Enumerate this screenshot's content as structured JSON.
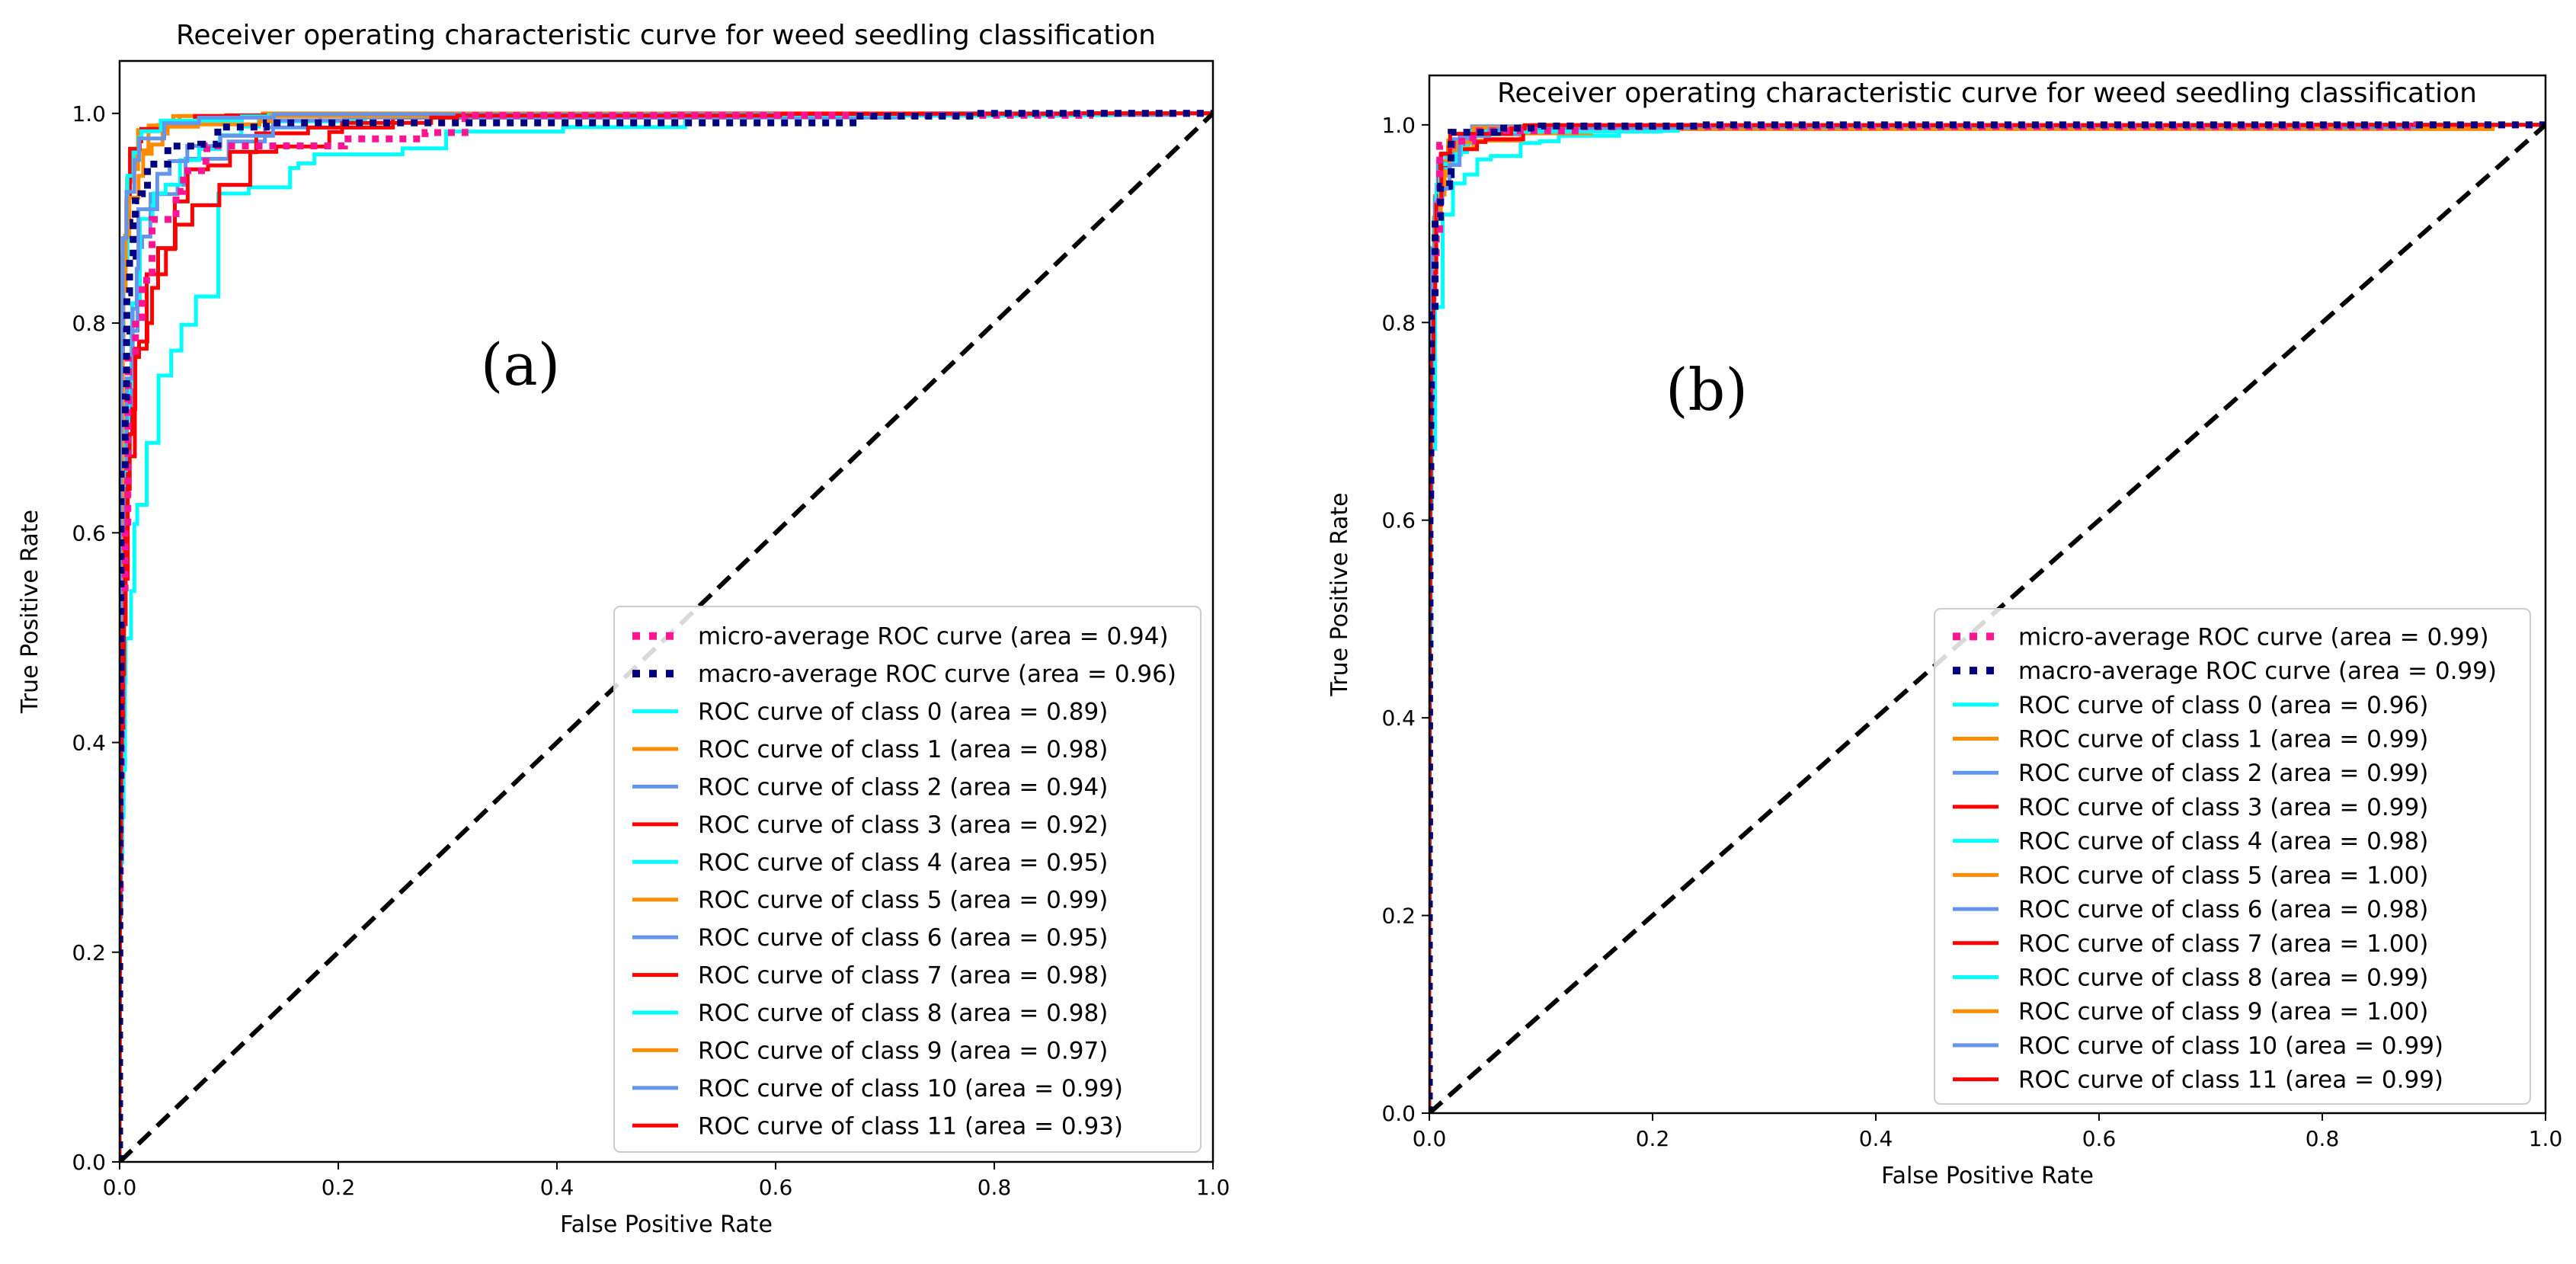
{
  "chart_data": [
    {
      "type": "line",
      "panel_label": "(a)",
      "title": "Receiver operating characteristic curve for weed seedling classification",
      "xlabel": "False Positive Rate",
      "ylabel": "True Positive Rate",
      "xlim": [
        0.0,
        1.0
      ],
      "ylim": [
        0.0,
        1.05
      ],
      "xticks": [
        "0.0",
        "0.2",
        "0.4",
        "0.6",
        "0.8",
        "1.0"
      ],
      "yticks": [
        "0.0",
        "0.2",
        "0.4",
        "0.6",
        "0.8",
        "1.0"
      ],
      "legend_position": "lower right",
      "series": [
        {
          "name": "micro-average ROC curve (area = 0.94)",
          "color": "#ff1493",
          "style": "dotted",
          "auc": 0.94
        },
        {
          "name": "macro-average ROC curve (area = 0.96)",
          "color": "#000080",
          "style": "dotted",
          "auc": 0.96
        },
        {
          "name": "ROC curve of class 0 (area = 0.89)",
          "color": "#00ffff",
          "style": "solid",
          "auc": 0.89
        },
        {
          "name": "ROC curve of class 1 (area = 0.98)",
          "color": "#ff8c00",
          "style": "solid",
          "auc": 0.98
        },
        {
          "name": "ROC curve of class 2 (area = 0.94)",
          "color": "#6495ed",
          "style": "solid",
          "auc": 0.94
        },
        {
          "name": "ROC curve of class 3 (area = 0.92)",
          "color": "#ff0000",
          "style": "solid",
          "auc": 0.92
        },
        {
          "name": "ROC curve of class 4 (area = 0.95)",
          "color": "#00ffff",
          "style": "solid",
          "auc": 0.95
        },
        {
          "name": "ROC curve of class 5 (area = 0.99)",
          "color": "#ff8c00",
          "style": "solid",
          "auc": 0.99
        },
        {
          "name": "ROC curve of class 6 (area = 0.95)",
          "color": "#6495ed",
          "style": "solid",
          "auc": 0.95
        },
        {
          "name": "ROC curve of class 7 (area = 0.98)",
          "color": "#ff0000",
          "style": "solid",
          "auc": 0.98
        },
        {
          "name": "ROC curve of class 8 (area = 0.98)",
          "color": "#00ffff",
          "style": "solid",
          "auc": 0.98
        },
        {
          "name": "ROC curve of class 9 (area = 0.97)",
          "color": "#ff8c00",
          "style": "solid",
          "auc": 0.97
        },
        {
          "name": "ROC curve of class 10 (area = 0.99)",
          "color": "#6495ed",
          "style": "solid",
          "auc": 0.99
        },
        {
          "name": "ROC curve of class 11 (area = 0.93)",
          "color": "#ff0000",
          "style": "solid",
          "auc": 0.93
        }
      ],
      "reference_line": {
        "x": [
          0,
          1
        ],
        "y": [
          0,
          1
        ],
        "color": "#000000",
        "style": "dashed"
      }
    },
    {
      "type": "line",
      "panel_label": "(b)",
      "title": "Receiver operating characteristic curve for weed seedling classification",
      "xlabel": "False Positive Rate",
      "ylabel": "True Positive Rate",
      "xlim": [
        0.0,
        1.0
      ],
      "ylim": [
        0.0,
        1.05
      ],
      "xticks": [
        "0.0",
        "0.2",
        "0.4",
        "0.6",
        "0.8",
        "1.0"
      ],
      "yticks": [
        "0.0",
        "0.2",
        "0.4",
        "0.6",
        "0.8",
        "1.0"
      ],
      "legend_position": "lower right",
      "series": [
        {
          "name": "micro-average ROC curve (area = 0.99)",
          "color": "#ff1493",
          "style": "dotted",
          "auc": 0.99
        },
        {
          "name": "macro-average ROC curve (area = 0.99)",
          "color": "#000080",
          "style": "dotted",
          "auc": 0.99
        },
        {
          "name": "ROC curve of class 0 (area = 0.96)",
          "color": "#00ffff",
          "style": "solid",
          "auc": 0.96
        },
        {
          "name": "ROC curve of class 1 (area = 0.99)",
          "color": "#ff8c00",
          "style": "solid",
          "auc": 0.99
        },
        {
          "name": "ROC curve of class 2 (area = 0.99)",
          "color": "#6495ed",
          "style": "solid",
          "auc": 0.99
        },
        {
          "name": "ROC curve of class 3 (area = 0.99)",
          "color": "#ff0000",
          "style": "solid",
          "auc": 0.99
        },
        {
          "name": "ROC curve of class 4 (area = 0.98)",
          "color": "#00ffff",
          "style": "solid",
          "auc": 0.98
        },
        {
          "name": "ROC curve of class 5 (area = 1.00)",
          "color": "#ff8c00",
          "style": "solid",
          "auc": 1.0
        },
        {
          "name": "ROC curve of class 6 (area = 0.98)",
          "color": "#6495ed",
          "style": "solid",
          "auc": 0.98
        },
        {
          "name": "ROC curve of class 7 (area = 1.00)",
          "color": "#ff0000",
          "style": "solid",
          "auc": 1.0
        },
        {
          "name": "ROC curve of class 8 (area = 0.99)",
          "color": "#00ffff",
          "style": "solid",
          "auc": 0.99
        },
        {
          "name": "ROC curve of class 9 (area = 1.00)",
          "color": "#ff8c00",
          "style": "solid",
          "auc": 1.0
        },
        {
          "name": "ROC curve of class 10 (area = 0.99)",
          "color": "#6495ed",
          "style": "solid",
          "auc": 0.99
        },
        {
          "name": "ROC curve of class 11 (area = 0.99)",
          "color": "#ff0000",
          "style": "solid",
          "auc": 0.99
        }
      ],
      "reference_line": {
        "x": [
          0,
          1
        ],
        "y": [
          0,
          1
        ],
        "color": "#000000",
        "style": "dashed"
      }
    }
  ]
}
